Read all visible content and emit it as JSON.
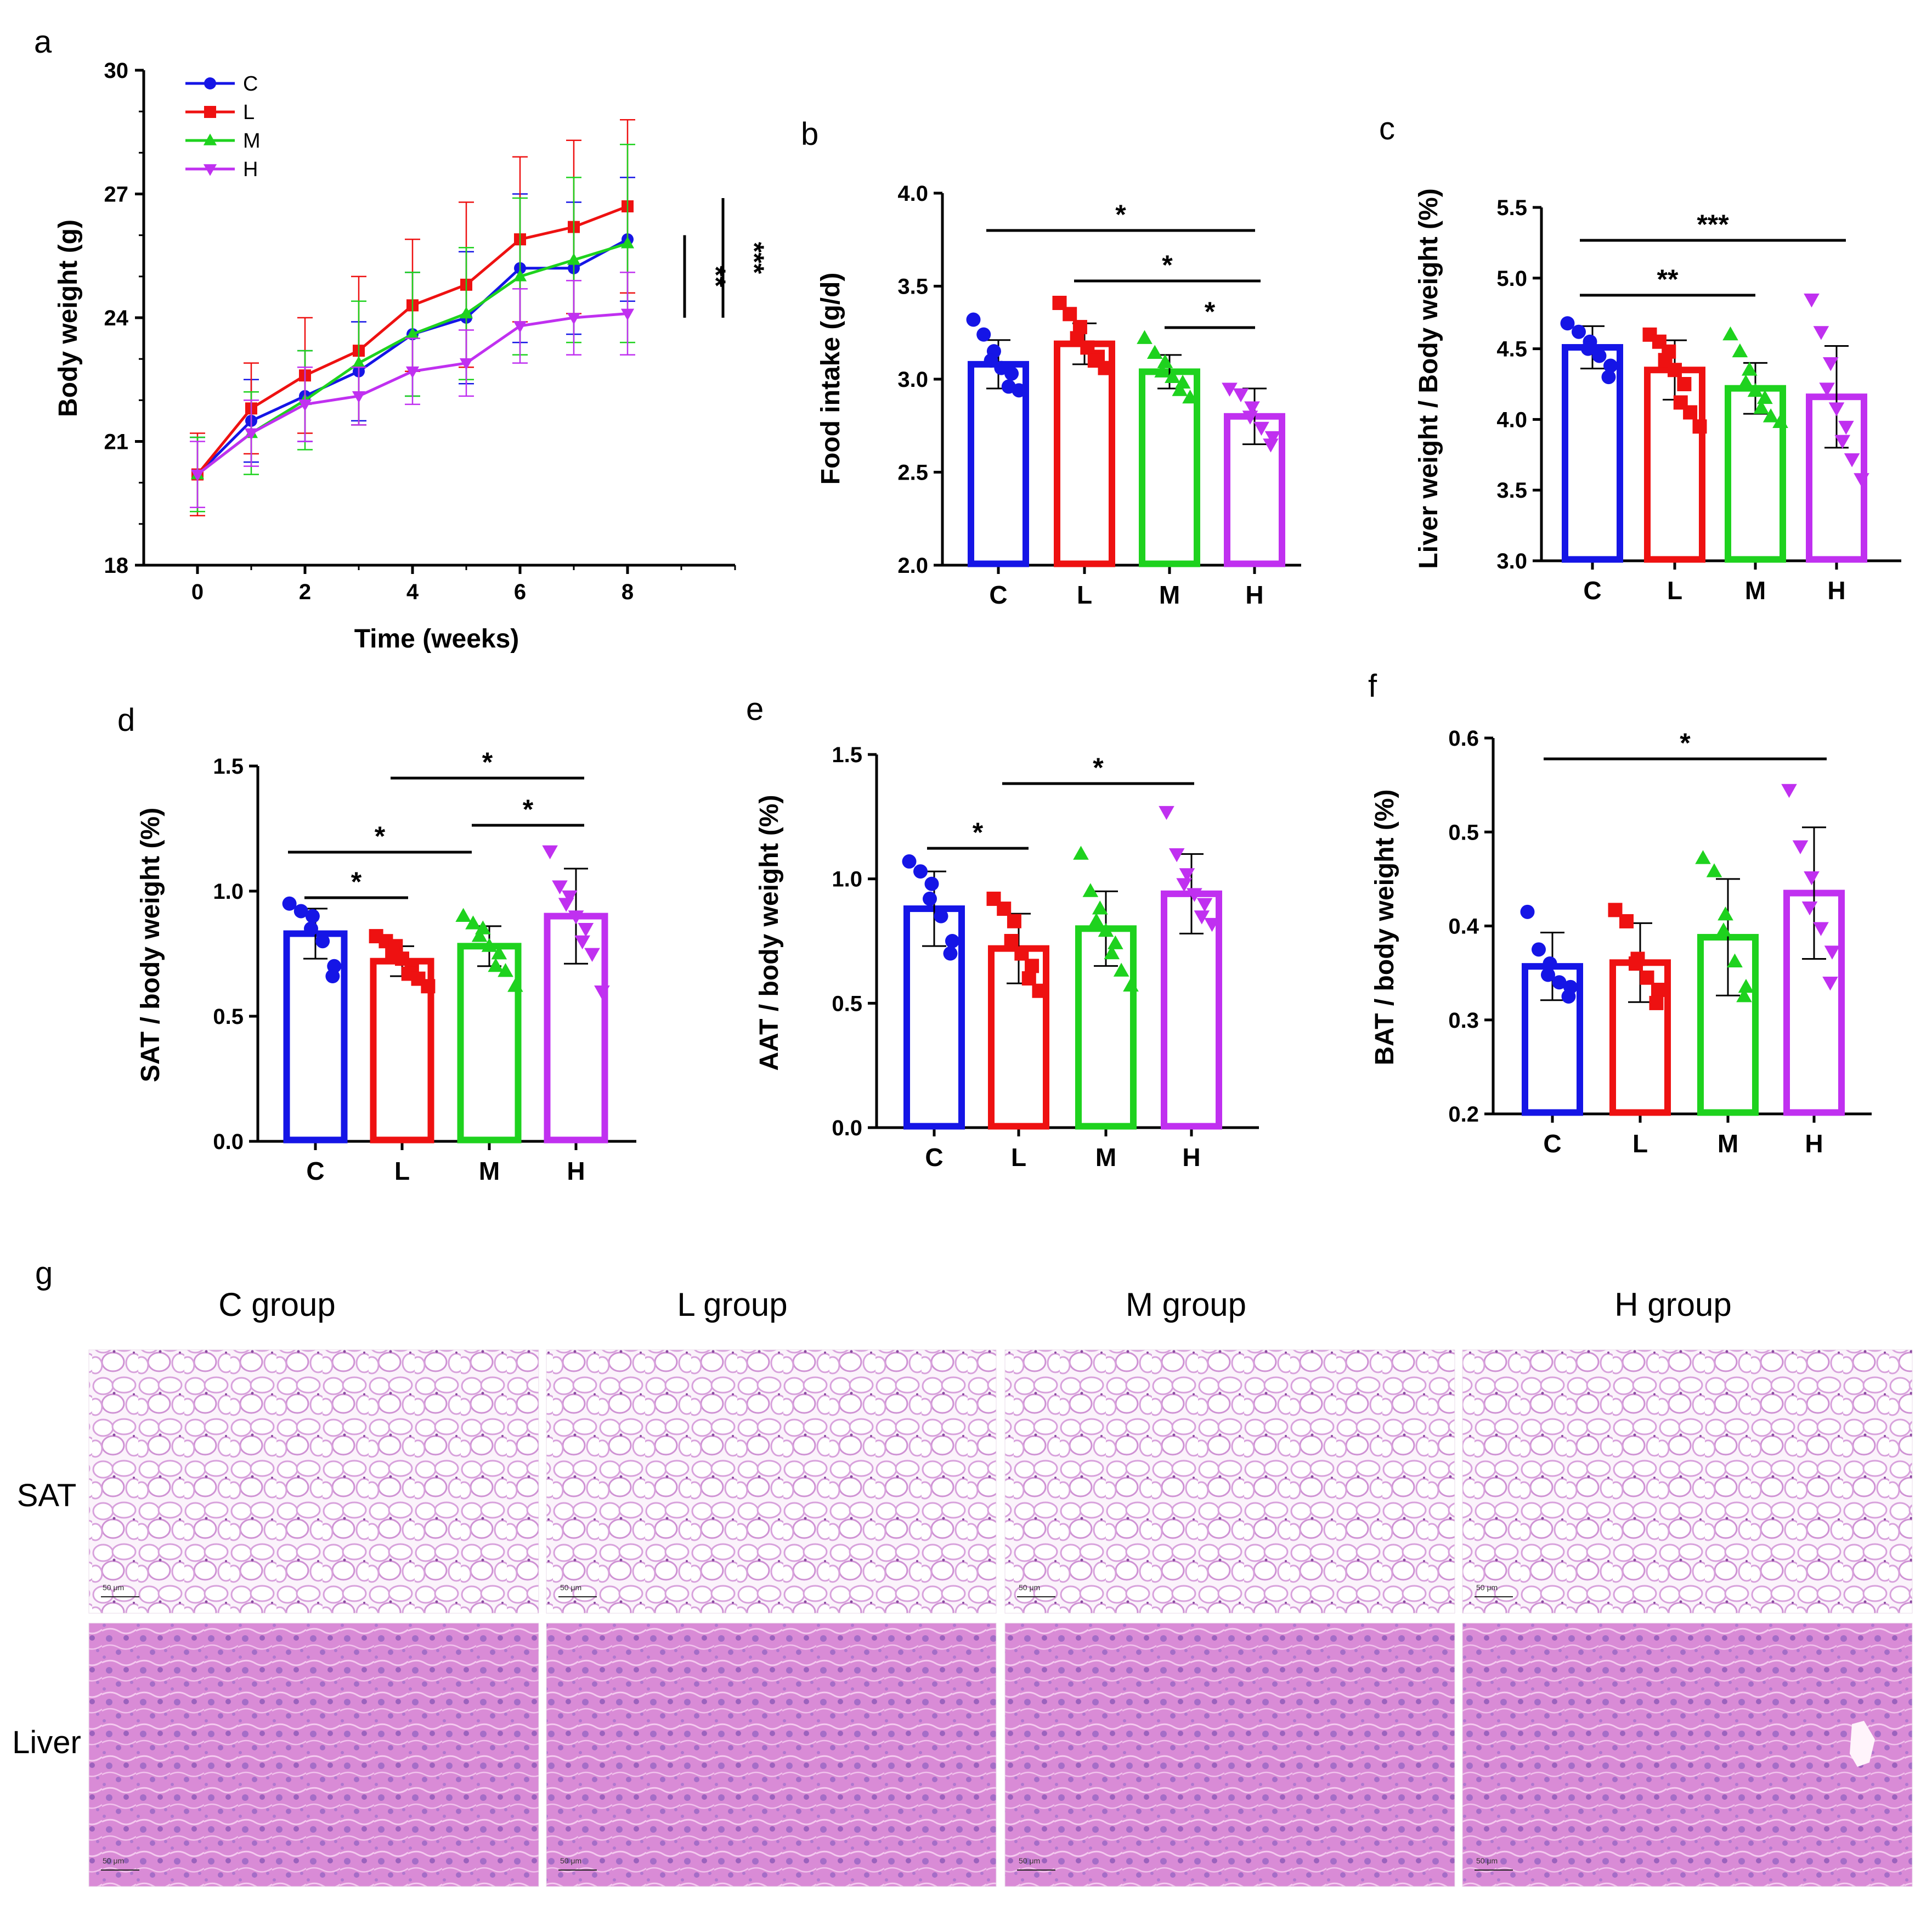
{
  "figure": {
    "panel_labels": [
      "a",
      "b",
      "c",
      "d",
      "e",
      "f",
      "g"
    ]
  },
  "colors": {
    "C": "#1515e6",
    "L": "#ee1111",
    "M": "#1ed21e",
    "H": "#c030f0"
  },
  "chart_data": [
    {
      "panel": "a",
      "type": "line",
      "title": "",
      "xlabel": "Time (weeks)",
      "ylabel": "Body weight (g)",
      "xlim": [
        -1,
        10
      ],
      "ylim": [
        18,
        30
      ],
      "xticks": [
        0,
        2,
        4,
        6,
        8
      ],
      "yticks": [
        18,
        21,
        24,
        27,
        30
      ],
      "x": [
        0,
        1,
        2,
        3,
        4,
        5,
        6,
        7,
        8
      ],
      "legend": [
        "C",
        "L",
        "M",
        "H"
      ],
      "legend_position": "top-left",
      "series": [
        {
          "name": "C",
          "marker": "circle",
          "values": [
            20.2,
            21.5,
            22.1,
            22.7,
            23.6,
            24.0,
            25.2,
            25.2,
            25.9
          ],
          "errors": [
            0.9,
            1.0,
            1.1,
            1.2,
            1.5,
            1.6,
            1.8,
            1.6,
            1.5
          ]
        },
        {
          "name": "L",
          "marker": "square",
          "values": [
            20.2,
            21.8,
            22.6,
            23.2,
            24.3,
            24.8,
            25.9,
            26.2,
            26.7
          ],
          "errors": [
            1.0,
            1.1,
            1.4,
            1.8,
            1.6,
            2.0,
            2.0,
            2.1,
            2.1
          ]
        },
        {
          "name": "M",
          "marker": "triangle-up",
          "values": [
            20.2,
            21.2,
            22.0,
            22.9,
            23.6,
            24.1,
            25.0,
            25.4,
            25.8
          ],
          "errors": [
            0.9,
            1.0,
            1.2,
            1.5,
            1.5,
            1.6,
            1.9,
            2.0,
            2.4
          ]
        },
        {
          "name": "H",
          "marker": "triangle-down",
          "values": [
            20.2,
            21.2,
            21.9,
            22.1,
            22.7,
            22.9,
            23.8,
            24.0,
            24.1
          ],
          "errors": [
            0.8,
            0.8,
            0.9,
            0.7,
            0.8,
            0.8,
            0.9,
            0.9,
            1.0
          ]
        }
      ],
      "significance": [
        {
          "label": "**",
          "between": [
            "M",
            "H"
          ]
        },
        {
          "label": "***",
          "between": [
            "L",
            "H"
          ]
        }
      ]
    },
    {
      "panel": "b",
      "type": "bar",
      "title": "",
      "xlabel": "",
      "ylabel": "Food intake (g/d)",
      "categories": [
        "C",
        "L",
        "M",
        "H"
      ],
      "ylim": [
        2.0,
        4.0
      ],
      "yticks": [
        "2.0",
        "2.5",
        "3.0",
        "3.5",
        "4.0"
      ],
      "values": [
        3.08,
        3.19,
        3.04,
        2.8
      ],
      "sd": [
        0.13,
        0.11,
        0.09,
        0.15
      ],
      "points": [
        [
          3.32,
          3.24,
          3.15,
          3.1,
          3.06,
          3.03,
          2.96,
          2.94
        ],
        [
          3.41,
          3.35,
          3.28,
          3.22,
          3.17,
          3.12,
          3.1,
          3.06
        ],
        [
          3.22,
          3.14,
          3.09,
          3.04,
          3.01,
          2.98,
          2.94,
          2.9
        ],
        [
          2.95,
          2.92,
          2.85,
          2.8,
          2.74,
          2.69,
          2.65
        ]
      ],
      "significance": [
        {
          "label": "*",
          "from": "C",
          "to": "H"
        },
        {
          "label": "*",
          "from": "L",
          "to": "H"
        },
        {
          "label": "*",
          "from": "M",
          "to": "H"
        }
      ]
    },
    {
      "panel": "c",
      "type": "bar",
      "title": "",
      "xlabel": "",
      "ylabel": "Liver weight / Body weight  (%)",
      "categories": [
        "C",
        "L",
        "M",
        "H"
      ],
      "ylim": [
        3.0,
        5.5
      ],
      "yticks": [
        "3.0",
        "3.5",
        "4.0",
        "4.5",
        "5.0",
        "5.5"
      ],
      "values": [
        4.51,
        4.35,
        4.22,
        4.16
      ],
      "sd": [
        0.15,
        0.21,
        0.18,
        0.36
      ],
      "points": [
        [
          4.68,
          4.62,
          4.55,
          4.5,
          4.45,
          4.38,
          4.3
        ],
        [
          4.6,
          4.55,
          4.48,
          4.42,
          4.35,
          4.25,
          4.12,
          4.05,
          3.95
        ],
        [
          4.6,
          4.48,
          4.35,
          4.26,
          4.2,
          4.15,
          4.08,
          4.02,
          3.98
        ],
        [
          4.85,
          4.62,
          4.4,
          4.22,
          4.08,
          3.95,
          3.85,
          3.72,
          3.58
        ]
      ],
      "significance": [
        {
          "label": "***",
          "from": "C",
          "to": "H"
        },
        {
          "label": "**",
          "from": "C",
          "to": "M"
        }
      ]
    },
    {
      "panel": "d",
      "type": "bar",
      "title": "",
      "xlabel": "",
      "ylabel": "SAT / body weight (%)",
      "categories": [
        "C",
        "L",
        "M",
        "H"
      ],
      "ylim": [
        0.0,
        1.5
      ],
      "yticks": [
        "0.0",
        "0.5",
        "1.0",
        "1.5"
      ],
      "values": [
        0.83,
        0.72,
        0.78,
        0.9
      ],
      "sd": [
        0.1,
        0.06,
        0.08,
        0.19
      ],
      "points": [
        [
          0.95,
          0.92,
          0.9,
          0.85,
          0.8,
          0.7,
          0.66
        ],
        [
          0.82,
          0.8,
          0.78,
          0.75,
          0.73,
          0.7,
          0.67,
          0.65,
          0.62
        ],
        [
          0.9,
          0.87,
          0.85,
          0.82,
          0.78,
          0.75,
          0.7,
          0.68,
          0.62
        ],
        [
          1.16,
          1.02,
          0.98,
          0.95,
          0.9,
          0.85,
          0.8,
          0.75,
          0.6
        ]
      ],
      "significance": [
        {
          "label": "*",
          "from": "L",
          "to": "H"
        },
        {
          "label": "*",
          "from": "M",
          "to": "H"
        },
        {
          "label": "*",
          "from": "C",
          "to": "M"
        },
        {
          "label": "*",
          "from": "C",
          "to": "L"
        }
      ]
    },
    {
      "panel": "e",
      "type": "bar",
      "title": "",
      "xlabel": "",
      "ylabel": "AAT / body weight (%)",
      "categories": [
        "C",
        "L",
        "M",
        "H"
      ],
      "ylim": [
        0.0,
        1.5
      ],
      "yticks": [
        "0.0",
        "0.5",
        "1.0",
        "1.5"
      ],
      "values": [
        0.88,
        0.72,
        0.8,
        0.94
      ],
      "sd": [
        0.15,
        0.14,
        0.15,
        0.16
      ],
      "points": [
        [
          1.07,
          1.03,
          0.98,
          0.92,
          0.85,
          0.75,
          0.7
        ],
        [
          0.92,
          0.88,
          0.83,
          0.75,
          0.7,
          0.65,
          0.6,
          0.55
        ],
        [
          1.1,
          0.95,
          0.88,
          0.83,
          0.79,
          0.74,
          0.7,
          0.63,
          0.57
        ],
        [
          1.27,
          1.1,
          1.02,
          0.98,
          0.94,
          0.9,
          0.85,
          0.82
        ]
      ],
      "significance": [
        {
          "label": "*",
          "from": "L",
          "to": "H"
        },
        {
          "label": "*",
          "from": "C",
          "to": "L"
        }
      ]
    },
    {
      "panel": "f",
      "type": "bar",
      "title": "",
      "xlabel": "",
      "ylabel": "BAT / body weight (%)",
      "categories": [
        "C",
        "L",
        "M",
        "H"
      ],
      "ylim": [
        0.2,
        0.6
      ],
      "yticks": [
        "0.2",
        "0.3",
        "0.4",
        "0.5",
        "0.6"
      ],
      "values": [
        0.357,
        0.361,
        0.388,
        0.435
      ],
      "sd": [
        0.036,
        0.042,
        0.062,
        0.07
      ],
      "points": [
        [
          0.415,
          0.375,
          0.36,
          0.348,
          0.34,
          0.335,
          0.325
        ],
        [
          0.417,
          0.405,
          0.365,
          0.36,
          0.345,
          0.332,
          0.318
        ],
        [
          0.472,
          0.458,
          0.412,
          0.395,
          0.362,
          0.335,
          0.325
        ],
        [
          0.545,
          0.485,
          0.452,
          0.42,
          0.398,
          0.373,
          0.34
        ]
      ],
      "significance": [
        {
          "label": "*",
          "from": "C",
          "to": "H"
        }
      ]
    }
  ],
  "histology": {
    "columns": [
      "C group",
      "L group",
      "M group",
      "H group"
    ],
    "rows": [
      "SAT",
      "Liver"
    ],
    "scale_bar_label": "50 μm"
  }
}
